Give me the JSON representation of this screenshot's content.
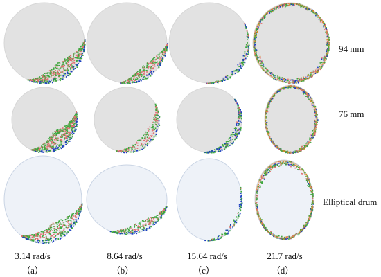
{
  "figure": {
    "rows": [
      {
        "label": "94 mm",
        "drum": "circle",
        "fill": "#e2e2e2"
      },
      {
        "label": "76 mm",
        "drum": "circle",
        "fill": "#e2e2e2"
      },
      {
        "label": "Elliptical drum",
        "drum": "ellipse",
        "fill": "#eef2f8"
      }
    ],
    "columns": [
      {
        "speed": "3.14 rad/s",
        "letter": "（a）"
      },
      {
        "speed": "8.64 rad/s",
        "letter": "（b）"
      },
      {
        "speed": "15.64 rad/s",
        "letter": "（c）"
      },
      {
        "speed": "21.7 rad/s",
        "letter": "（d）"
      }
    ],
    "particle_colors": {
      "green": "#3fa83f",
      "red": "#e07070",
      "blue": "#1a3fc0",
      "orange": "#d98a2b"
    }
  }
}
